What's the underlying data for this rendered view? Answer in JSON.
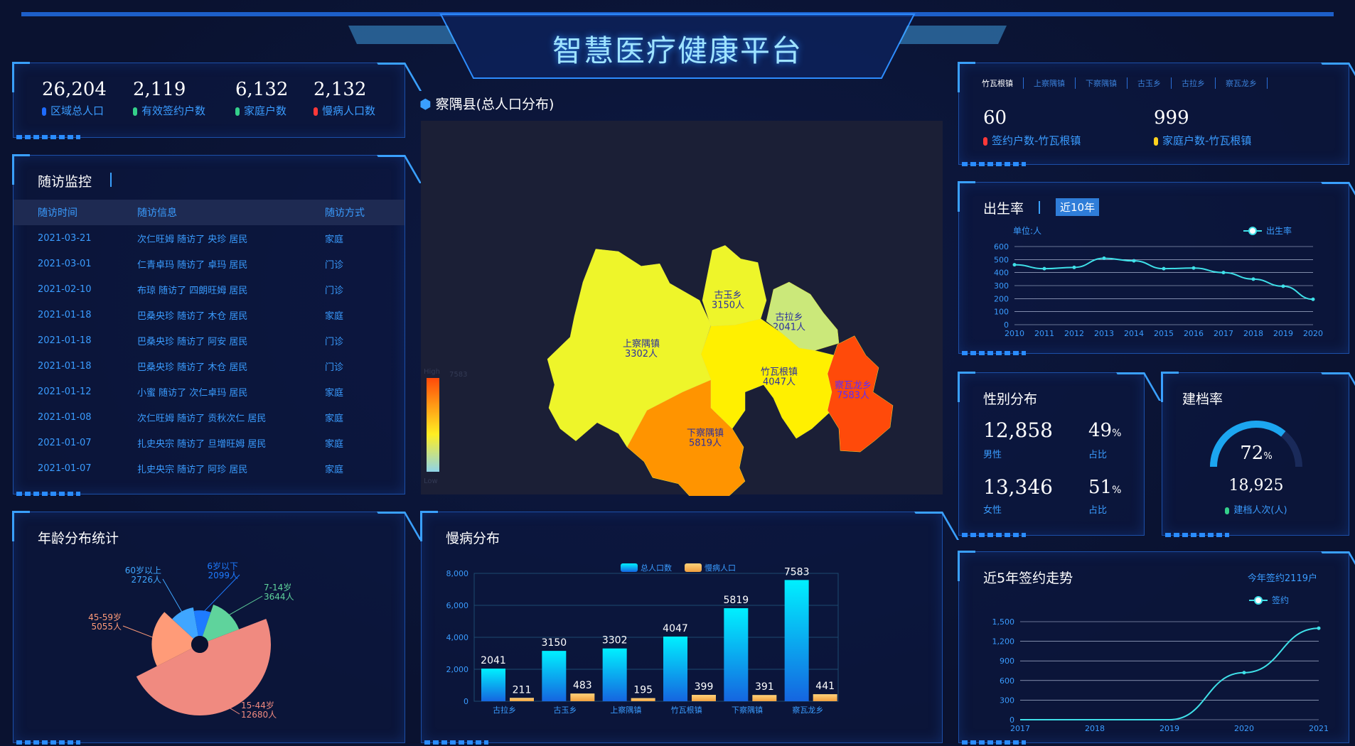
{
  "header": {
    "title": "智慧医疗健康平台"
  },
  "stats": [
    {
      "value": "26,204",
      "label": "区域总人口",
      "color": "#1e6bff"
    },
    {
      "value": "2,119",
      "label": "有效签约户数",
      "color": "#34d08a"
    },
    {
      "value": "6,132",
      "label": "家庭户数",
      "color": "#34d08a"
    },
    {
      "value": "2,132",
      "label": "慢病人口数",
      "color": "#ff3838"
    }
  ],
  "followup": {
    "title": "随访监控",
    "cols": [
      "随访时间",
      "随访信息",
      "随访方式"
    ],
    "rows": [
      [
        "2021-03-21",
        "次仁旺姆 随访了 央珍 居民",
        "家庭"
      ],
      [
        "2021-03-01",
        "仁青卓玛 随访了 卓玛 居民",
        "门诊"
      ],
      [
        "2021-02-10",
        "布琼 随访了 四朗旺姆 居民",
        "门诊"
      ],
      [
        "2021-01-18",
        "巴桑央珍 随访了 木仓 居民",
        "家庭"
      ],
      [
        "2021-01-18",
        "巴桑央珍 随访了 阿安 居民",
        "门诊"
      ],
      [
        "2021-01-18",
        "巴桑央珍 随访了 木仓 居民",
        "门诊"
      ],
      [
        "2021-01-12",
        "小蜜 随访了 次仁卓玛 居民",
        "家庭"
      ],
      [
        "2021-01-08",
        "次仁旺姆 随访了 贡秋次仁 居民",
        "家庭"
      ],
      [
        "2021-01-07",
        "扎史央宗 随访了 旦增旺姆 居民",
        "家庭"
      ],
      [
        "2021-01-07",
        "扎史央宗 随访了 阿珍 居民",
        "家庭"
      ]
    ]
  },
  "map": {
    "title": "察隅县(总人口分布)",
    "high": "High",
    "low": "Low",
    "max": "7583",
    "regions": [
      {
        "name": "上察隅镇",
        "value": "3302人",
        "color": "#eef52a"
      },
      {
        "name": "古玉乡",
        "value": "3150人",
        "color": "#eef52a"
      },
      {
        "name": "古拉乡",
        "value": "2041人",
        "color": "#cbe87a"
      },
      {
        "name": "竹瓦根镇",
        "value": "4047人",
        "color": "#fff000"
      },
      {
        "name": "察瓦龙乡",
        "value": "7583人",
        "color": "#ff4a0a"
      },
      {
        "name": "下察隅镇",
        "value": "5819人",
        "color": "#ff9400"
      }
    ]
  },
  "towns": {
    "tabs": [
      "竹瓦根镇",
      "上察隅镇",
      "下察隅镇",
      "古玉乡",
      "古拉乡",
      "察瓦龙乡"
    ],
    "items": [
      {
        "value": "60",
        "label": "签约户数-竹瓦根镇",
        "color": "#ff3838"
      },
      {
        "value": "999",
        "label": "家庭户数-竹瓦根镇",
        "color": "#ffd21e"
      }
    ]
  },
  "birth": {
    "title": "出生率",
    "badge": "近10年"
  },
  "gender": {
    "title": "性别分布",
    "male_value": "12,858",
    "male_label": "男性",
    "male_pct": "49",
    "female_value": "13,346",
    "female_label": "女性",
    "female_pct": "51",
    "pct_unit": "%",
    "pct_label": "占比"
  },
  "archive": {
    "title": "建档率",
    "pct": "72",
    "unit": "%",
    "count": "18,925",
    "label": "建档人次(人)",
    "fraction": 0.72
  },
  "sign": {
    "title": "近5年签约走势",
    "note": "今年签约2119户"
  },
  "age": {
    "title": "年龄分布统计"
  },
  "chronic": {
    "title": "慢病分布"
  },
  "chart_data": [
    {
      "id": "birth",
      "type": "line",
      "title": "出生率",
      "ylabel": "单位:人",
      "legend": [
        "出生率"
      ],
      "x": [
        "2010",
        "2011",
        "2012",
        "2013",
        "2014",
        "2015",
        "2016",
        "2017",
        "2018",
        "2019",
        "2020"
      ],
      "series": [
        {
          "name": "出生率",
          "values": [
            460,
            430,
            440,
            510,
            490,
            430,
            435,
            400,
            350,
            295,
            195
          ]
        }
      ],
      "ylim": [
        0,
        600
      ],
      "yticks": [
        "0",
        "100",
        "200",
        "300",
        "400",
        "500",
        "600"
      ]
    },
    {
      "id": "sign",
      "type": "line",
      "legend": [
        "签约"
      ],
      "x": [
        "2017",
        "2018",
        "2019",
        "2020",
        "2021"
      ],
      "series": [
        {
          "name": "签约",
          "values": [
            0,
            0,
            0,
            720,
            1400
          ]
        }
      ],
      "ylim": [
        0,
        1500
      ],
      "yticks": [
        "0",
        "300",
        "600",
        "900",
        "1,200",
        "1,500"
      ]
    },
    {
      "id": "chronic",
      "type": "bar",
      "legend": [
        "总人口数",
        "慢病人口"
      ],
      "categories": [
        "古拉乡",
        "古玉乡",
        "上察隅镇",
        "竹瓦根镇",
        "下察隅镇",
        "察瓦龙乡"
      ],
      "series": [
        {
          "name": "总人口数",
          "values": [
            2041,
            3150,
            3302,
            4047,
            5819,
            7583
          ]
        },
        {
          "name": "慢病人口",
          "values": [
            211,
            483,
            195,
            399,
            391,
            441
          ]
        }
      ],
      "ylim": [
        0,
        8000
      ],
      "yticks": [
        "0",
        "2,000",
        "4,000",
        "6,000",
        "8,000"
      ]
    },
    {
      "id": "age",
      "type": "pie",
      "slices": [
        {
          "name": "6岁以下",
          "label": "6岁以下\n2099人",
          "value": 2099,
          "color": "#1e7bff"
        },
        {
          "name": "7-14岁",
          "label": "7-14岁\n3644人",
          "value": 3644,
          "color": "#5fd39c"
        },
        {
          "name": "15-44岁",
          "label": "15-44岁\n12680人",
          "value": 12680,
          "color": "#f08a80"
        },
        {
          "name": "45-59岁",
          "label": "45-59岁\n5055人",
          "value": 5055,
          "color": "#ff9b78"
        },
        {
          "name": "60岁以上",
          "label": "60岁以上\n2726人",
          "value": 2726,
          "color": "#3fa6ff"
        }
      ]
    }
  ]
}
